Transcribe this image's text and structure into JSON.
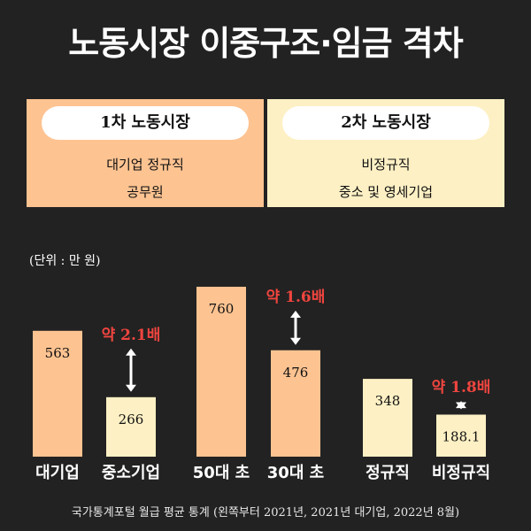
{
  "title": "노동시장 이중구조·임금 격차",
  "panels": [
    {
      "heading": "1차 노동시장",
      "lines": [
        "대기업 정규직",
        "공무원"
      ]
    },
    {
      "heading": "2차 노동시장",
      "lines": [
        "비정규직",
        "중소 및 영세기업"
      ]
    }
  ],
  "unit_label": "(단위 : 만 원)",
  "footnote": "국가통계포털 월급 평균 통계 (왼쪽부터 2021년, 2021년 대기업, 2022년 8월)",
  "colors": {
    "background": "#222222",
    "bar_primary": "#fdc391",
    "bar_secondary": "#fdf0c4",
    "ratio_text": "#f0453f"
  },
  "chart_data": {
    "type": "bar",
    "categories": [
      "대기업",
      "중소기업",
      "50대 초",
      "30대 초",
      "정규직",
      "비정규직"
    ],
    "values": [
      563,
      266,
      760,
      476,
      348,
      188.1
    ],
    "value_labels": [
      "563",
      "266",
      "760",
      "476",
      "348",
      "188.1"
    ],
    "groups": [
      {
        "bars": [
          0,
          1
        ],
        "ratio_label": "약 2.1배"
      },
      {
        "bars": [
          2,
          3
        ],
        "ratio_label": "약 1.6배"
      },
      {
        "bars": [
          4,
          5
        ],
        "ratio_label": "약 1.8배"
      }
    ],
    "bar_colors": [
      "#fdc391",
      "#fdf0c4",
      "#fdc391",
      "#fdc391",
      "#fdf0c4",
      "#fdf0c4"
    ],
    "ylim": [
      0,
      760
    ]
  }
}
